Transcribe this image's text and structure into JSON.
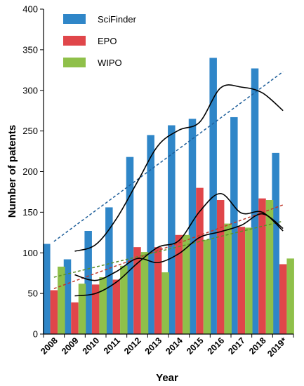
{
  "chart_data": {
    "type": "bar",
    "categories": [
      "2008",
      "2009",
      "2010",
      "2011",
      "2012",
      "2013",
      "2014",
      "2015",
      "2016",
      "2017",
      "2018",
      "2019*"
    ],
    "series": [
      {
        "name": "SciFinder",
        "color": "#2f86c8",
        "values": [
          111,
          92,
          127,
          156,
          218,
          245,
          257,
          265,
          340,
          267,
          327,
          223
        ]
      },
      {
        "name": "EPO",
        "color": "#e0464a",
        "values": [
          54,
          39,
          61,
          67,
          107,
          107,
          122,
          180,
          165,
          132,
          167,
          86
        ]
      },
      {
        "name": "WIPO",
        "color": "#8fc04a",
        "values": [
          83,
          62,
          70,
          84,
          101,
          76,
          122,
          116,
          136,
          131,
          165,
          93
        ]
      }
    ],
    "trendlines": [
      {
        "series": "SciFinder",
        "style": "dashed",
        "color": "#1f5f9a",
        "start": 114,
        "end": 323
      },
      {
        "series": "EPO",
        "style": "dashed",
        "color": "#c0392b",
        "start": 56,
        "end": 159
      },
      {
        "series": "WIPO",
        "style": "dashed",
        "color": "#5a8f2a",
        "start": 70,
        "end": 139
      }
    ],
    "moving_averages": [
      {
        "series": "SciFinder",
        "color": "#000000",
        "values": [
          null,
          102,
          110,
          142,
          187,
          232,
          251,
          261,
          303,
          304,
          297,
          275
        ]
      },
      {
        "series": "EPO",
        "color": "#000000",
        "values": [
          null,
          47,
          50,
          64,
          87,
          107,
          115,
          151,
          173,
          149,
          150,
          127
        ]
      },
      {
        "series": "WIPO",
        "color": "#000000",
        "values": [
          null,
          73,
          66,
          77,
          93,
          88,
          99,
          119,
          126,
          134,
          148,
          130
        ]
      }
    ],
    "xlabel": "Year",
    "ylabel": "Number of patents",
    "ylim": [
      0,
      400
    ],
    "yticks": [
      0,
      50,
      100,
      150,
      200,
      250,
      300,
      350,
      400
    ],
    "grid": false,
    "legend": "top-left"
  }
}
